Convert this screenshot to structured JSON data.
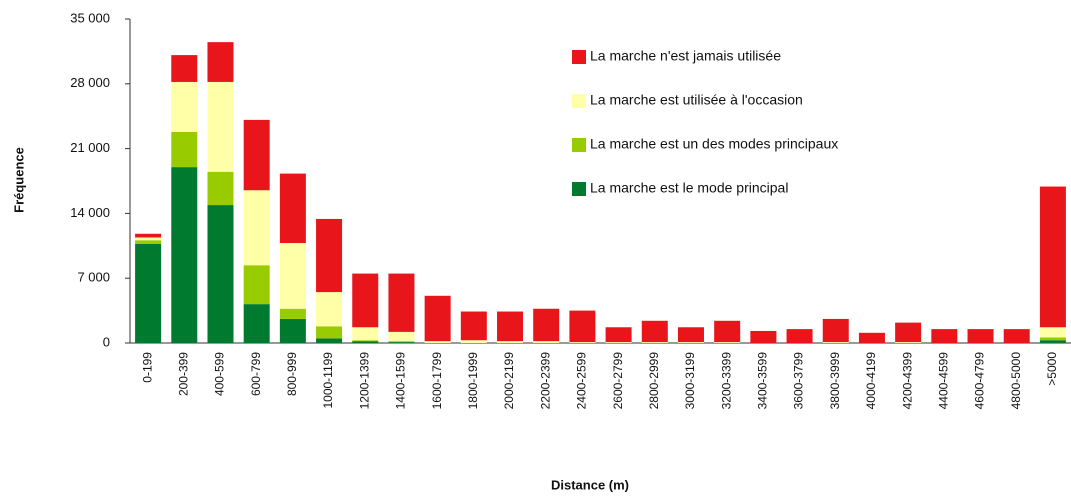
{
  "chart_data": {
    "type": "stacked_bar",
    "x_label": "Distance (m)",
    "y_label": "Fréquence",
    "categories": [
      "0-199",
      "200-399",
      "400-599",
      "600-799",
      "800-999",
      "1000-1199",
      "1200-1399",
      "1400-1599",
      "1600-1799",
      "1800-1999",
      "2000-2199",
      "2200-2399",
      "2400-2599",
      "2600-2799",
      "2800-2999",
      "3000-3199",
      "3200-3399",
      "3400-3599",
      "3600-3799",
      "3800-3999",
      "4000-4199",
      "4200-4399",
      "4400-4599",
      "4600-4799",
      "4800-5000",
      ">5000"
    ],
    "series": [
      {
        "name": "La marche est le mode principal",
        "color": "#007a2e",
        "values": [
          10700,
          19000,
          14900,
          4200,
          2600,
          500,
          200,
          100,
          0,
          0,
          0,
          0,
          0,
          0,
          0,
          0,
          0,
          0,
          0,
          0,
          0,
          0,
          0,
          0,
          0,
          300
        ]
      },
      {
        "name": "La marche est un des modes principaux",
        "color": "#99cc00",
        "values": [
          400,
          3800,
          3600,
          4200,
          1100,
          1300,
          100,
          100,
          0,
          0,
          0,
          0,
          0,
          0,
          0,
          0,
          0,
          0,
          0,
          0,
          0,
          0,
          0,
          0,
          0,
          300
        ]
      },
      {
        "name": "La marche est utilisée à l'occasion",
        "color": "#ffffa8",
        "values": [
          300,
          5400,
          9700,
          8100,
          7100,
          3700,
          1400,
          1000,
          200,
          300,
          200,
          200,
          100,
          100,
          100,
          100,
          100,
          0,
          0,
          100,
          0,
          100,
          0,
          0,
          0,
          1100
        ]
      },
      {
        "name": "La marche n'est jamais utilisée",
        "color": "#e8151b",
        "values": [
          400,
          2900,
          4300,
          7600,
          7500,
          7900,
          5800,
          6300,
          4900,
          3100,
          3200,
          3500,
          3400,
          1600,
          2300,
          1600,
          2300,
          1300,
          1500,
          2500,
          1100,
          2100,
          1500,
          1500,
          1500,
          15200
        ]
      }
    ],
    "ylim": [
      0,
      35000
    ],
    "yticks": [
      0,
      {
        "value": 7000,
        "label": "7 000"
      },
      {
        "value": 14000,
        "label": "14 000"
      },
      {
        "value": 21000,
        "label": "21 000"
      },
      {
        "value": 28000,
        "label": "28 000"
      },
      {
        "value": 35000,
        "label": "35 000"
      }
    ]
  }
}
